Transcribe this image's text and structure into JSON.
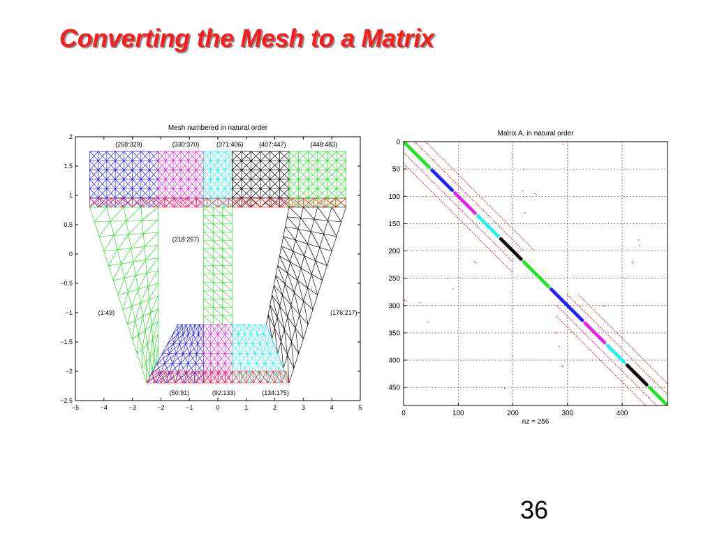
{
  "slide": {
    "title": "Converting the Mesh to a Matrix",
    "page_number": "36"
  },
  "colors": {
    "title": "#ff1a1a",
    "blue": "#1a1aff",
    "magenta": "#e020e0",
    "cyan": "#20f0f0",
    "black": "#000000",
    "green": "#20e020",
    "red": "#ff2020"
  },
  "chart_data": [
    {
      "type": "mesh",
      "title": "Mesh numbered in natural order",
      "xlim": [
        -5,
        5
      ],
      "ylim": [
        -2.5,
        2
      ],
      "xticks": [
        "−5",
        "−4",
        "−3",
        "−2",
        "−1",
        "0",
        "1",
        "2",
        "3",
        "4",
        "5"
      ],
      "yticks": [
        "2",
        "1.5",
        "1",
        "0.5",
        "0",
        "−0.5",
        "−1",
        "−1.5",
        "−2",
        "−2.5"
      ],
      "regions": [
        {
          "label": "(1:49)",
          "color": "green"
        },
        {
          "label": "(50:91)",
          "color": "blue"
        },
        {
          "label": "(92:133)",
          "color": "magenta"
        },
        {
          "label": "(134:175)",
          "color": "cyan"
        },
        {
          "label": "(176:217)",
          "color": "black"
        },
        {
          "label": "(218:267)",
          "color": "green"
        },
        {
          "label": "(268:329)",
          "color": "blue"
        },
        {
          "label": "(330:370)",
          "color": "magenta"
        },
        {
          "label": "(371:406)",
          "color": "cyan"
        },
        {
          "label": "(407:447)",
          "color": "black"
        },
        {
          "label": "(448:483)",
          "color": "green"
        }
      ]
    },
    {
      "type": "spy",
      "title": "Matrix A, in natural order",
      "xlabel": "nz = 256",
      "xlim": [
        0,
        483
      ],
      "ylim": [
        0,
        483
      ],
      "xticks": [
        "0",
        "100",
        "200",
        "300",
        "400"
      ],
      "yticks": [
        "0",
        "50",
        "100",
        "150",
        "200",
        "250",
        "300",
        "350",
        "400",
        "450"
      ],
      "grid": true
    }
  ]
}
